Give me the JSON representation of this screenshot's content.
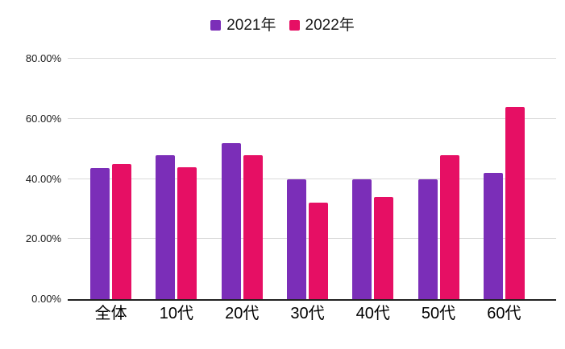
{
  "chart_data": {
    "type": "bar",
    "title": "",
    "xlabel": "",
    "ylabel": "",
    "categories": [
      "全体",
      "10代",
      "20代",
      "30代",
      "40代",
      "50代",
      "60代"
    ],
    "series": [
      {
        "name": "2021年",
        "color": "#7B2EB8",
        "values": [
          43.6,
          48.0,
          52.0,
          40.0,
          40.0,
          40.0,
          42.0
        ]
      },
      {
        "name": "2022年",
        "color": "#E60F64",
        "values": [
          44.9,
          44.0,
          48.0,
          32.0,
          34.0,
          48.0,
          64.0
        ]
      }
    ],
    "ylim": [
      0,
      80
    ],
    "yticks": [
      {
        "value": 80,
        "label": "80.00%"
      },
      {
        "value": 60,
        "label": "60.00%"
      },
      {
        "value": 40,
        "label": "40.00%"
      },
      {
        "value": 20,
        "label": "20.00%"
      },
      {
        "value": 0,
        "label": "0.00%"
      }
    ],
    "grid": true,
    "legend_position": "top"
  },
  "colors": {
    "grid": "#dadada",
    "axis": "#212121",
    "tick_text": "#1a1a1a",
    "category_text": "#000000",
    "background": "#ffffff"
  }
}
